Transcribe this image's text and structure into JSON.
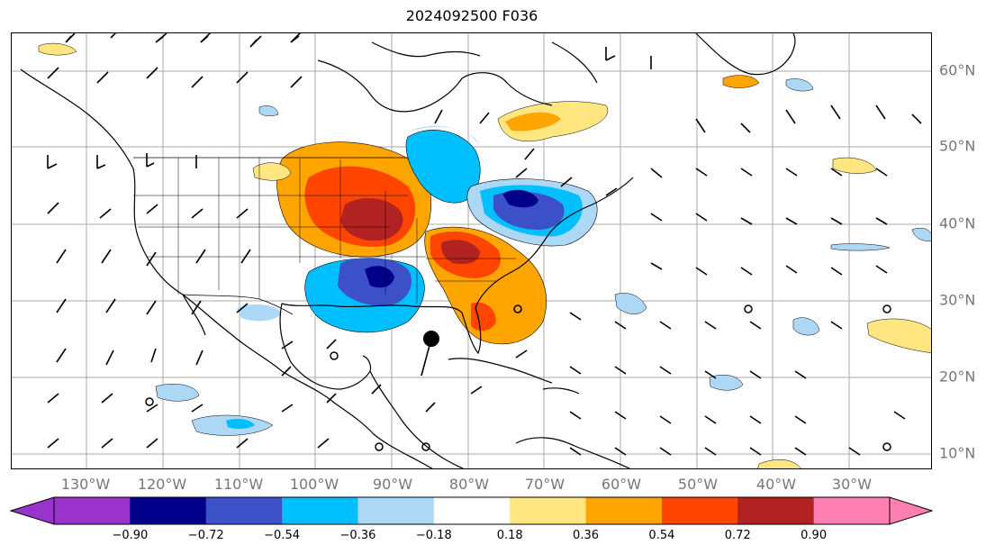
{
  "title": "2024092500 F036",
  "longitude_labels": [
    "130°W",
    "120°W",
    "110°W",
    "100°W",
    "90°W",
    "80°W",
    "70°W",
    "60°W",
    "50°W",
    "40°W",
    "30°W"
  ],
  "latitude_labels": [
    "60°N",
    "50°N",
    "40°N",
    "30°N",
    "20°N",
    "10°N"
  ],
  "colorbar": {
    "ticks": [
      "−0.90",
      "−0.72",
      "−0.54",
      "−0.36",
      "−0.18",
      "0.18",
      "0.36",
      "0.54",
      "0.72",
      "0.90"
    ],
    "colors": [
      "#9933cc",
      "#00008b",
      "#3c50c8",
      "#00bfff",
      "#add8f5",
      "#ffffff",
      "#ffe680",
      "#ffa500",
      "#ff4500",
      "#b22222",
      "#ff80b0"
    ]
  },
  "storm_marker": {
    "symbol": "filled-circle",
    "lat": 25,
    "lon": -85
  }
}
